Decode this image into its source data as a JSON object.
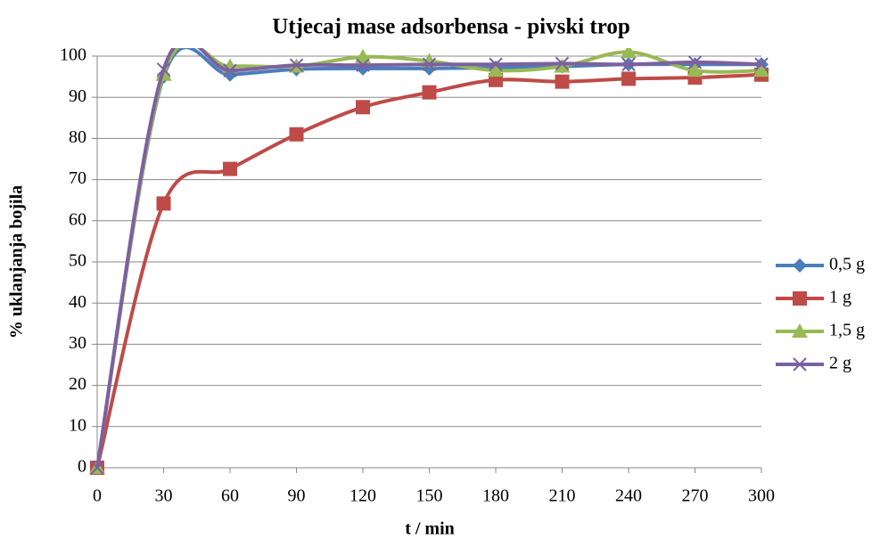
{
  "chart_data": {
    "type": "line",
    "title": "Utjecaj mase adsorbensa - pivski trop",
    "x_label": "t / min",
    "y_label": "% uklanjanja bojila",
    "x": [
      0,
      30,
      60,
      90,
      120,
      150,
      180,
      210,
      240,
      270,
      300
    ],
    "xlim": [
      0,
      300
    ],
    "xticks": [
      0,
      30,
      60,
      90,
      120,
      150,
      180,
      210,
      240,
      270,
      300
    ],
    "ylim": [
      0,
      100
    ],
    "yticks": [
      0,
      10,
      20,
      30,
      40,
      50,
      60,
      70,
      80,
      90,
      100
    ],
    "grid": true,
    "smooth": true,
    "legend": "right",
    "series": [
      {
        "name": "0,5 g",
        "color": "#4a7ebb",
        "marker": "diamond",
        "values": [
          0,
          95,
          95.5,
          96.8,
          97,
          97,
          97.2,
          97.5,
          98,
          98,
          98
        ]
      },
      {
        "name": "1 g",
        "color": "#be4b48",
        "marker": "square",
        "values": [
          0,
          64.2,
          72.6,
          81,
          87.6,
          91.2,
          94.2,
          93.8,
          94.5,
          94.8,
          95.5
        ]
      },
      {
        "name": "1,5 g",
        "color": "#98b954",
        "marker": "triangle",
        "values": [
          0,
          95.5,
          97.5,
          97.5,
          99.8,
          98.8,
          96.5,
          97.5,
          101,
          96.5,
          96.5
        ]
      },
      {
        "name": "2 g",
        "color": "#7d60a0",
        "marker": "x",
        "values": [
          0,
          96.8,
          96.5,
          97.8,
          97.8,
          98,
          98,
          98.2,
          98,
          98.5,
          98
        ]
      }
    ]
  }
}
